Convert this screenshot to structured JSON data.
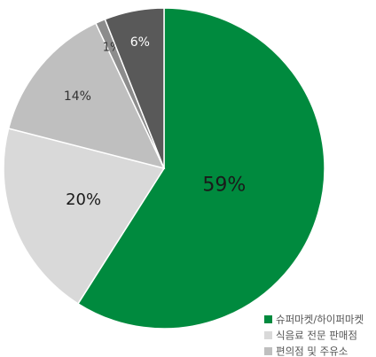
{
  "chart_data": {
    "type": "pie",
    "categories": [
      "슈퍼마켓/하이퍼마켓",
      "식음료 전문 판매점",
      "편의점 및 주유소",
      null,
      null
    ],
    "values": [
      59,
      20,
      14,
      1,
      6
    ],
    "value_labels": [
      "59%",
      "20%",
      "14%",
      "1%",
      "6%"
    ],
    "colors": [
      "#008a3e",
      "#d9d9d9",
      "#bfbfbf",
      "#8c8c8c",
      "#595959"
    ]
  }
}
